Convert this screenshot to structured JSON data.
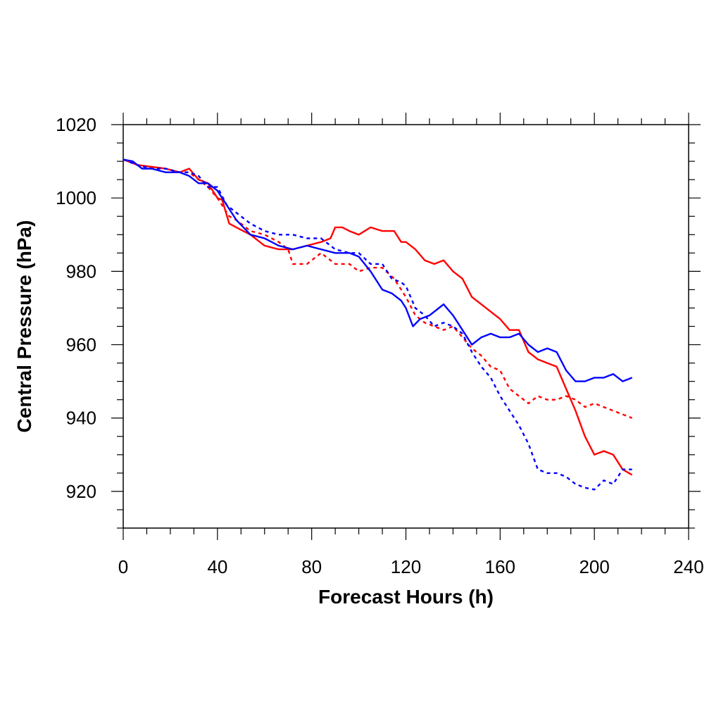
{
  "chart_data": {
    "type": "line",
    "title": "",
    "xlabel": "Forecast Hours (h)",
    "ylabel": "Central Pressure (hPa)",
    "xlim": [
      0,
      240
    ],
    "ylim": [
      910,
      1020
    ],
    "xticks": [
      0,
      40,
      80,
      120,
      160,
      200,
      240
    ],
    "yticks": [
      920,
      940,
      960,
      980,
      1000,
      1020
    ],
    "grid": false,
    "legend": "none",
    "series": [
      {
        "color": "#ff0000",
        "linestyle": "solid",
        "x": [
          0,
          6,
          12,
          18,
          24,
          28,
          32,
          36,
          40,
          42,
          45,
          48,
          54,
          60,
          66,
          72,
          78,
          84,
          88,
          90,
          93,
          96,
          100,
          105,
          110,
          115,
          118,
          120,
          124,
          128,
          132,
          136,
          140,
          144,
          148,
          152,
          156,
          160,
          164,
          168,
          172,
          176,
          180,
          184,
          188,
          192,
          196,
          200,
          204,
          208,
          212,
          216
        ],
        "y": [
          1010.5,
          1009,
          1008.5,
          1008,
          1007,
          1008,
          1005,
          1004,
          1000,
          999.5,
          993,
          992,
          990,
          987,
          986,
          986,
          987,
          988,
          989,
          992,
          992,
          991,
          990,
          992,
          991,
          991,
          988,
          988,
          986,
          983,
          982,
          983,
          980,
          978,
          973,
          971,
          969,
          967,
          964,
          964,
          958,
          956,
          955,
          954,
          948,
          942,
          935,
          930,
          931,
          930,
          926,
          924.5
        ]
      },
      {
        "color": "#ff0000",
        "linestyle": "dashed",
        "x": [
          0,
          6,
          12,
          18,
          24,
          28,
          32,
          36,
          40,
          42,
          45,
          48,
          54,
          60,
          66,
          70,
          72,
          78,
          84,
          90,
          96,
          100,
          105,
          110,
          115,
          120,
          124,
          128,
          132,
          136,
          140,
          144,
          148,
          152,
          156,
          160,
          164,
          168,
          172,
          176,
          180,
          184,
          188,
          192,
          196,
          200,
          204,
          208,
          212,
          216
        ],
        "y": [
          1010.5,
          1009,
          1008.5,
          1008,
          1007,
          1007,
          1005,
          1003,
          1000,
          998,
          995,
          994,
          991,
          990,
          988,
          986,
          982,
          982,
          985,
          982,
          982,
          980,
          981,
          981,
          978,
          973,
          968,
          966,
          965,
          964,
          965,
          962,
          959,
          957,
          954,
          953,
          948,
          946,
          944,
          946,
          945,
          945,
          946,
          945,
          943,
          944,
          943,
          942,
          941,
          940
        ]
      },
      {
        "color": "#0000ff",
        "linestyle": "solid",
        "x": [
          0,
          4,
          8,
          12,
          18,
          24,
          28,
          32,
          36,
          40,
          44,
          48,
          54,
          60,
          66,
          72,
          78,
          84,
          90,
          96,
          100,
          105,
          110,
          114,
          118,
          120,
          123,
          126,
          130,
          134,
          136,
          140,
          144,
          148,
          152,
          156,
          160,
          164,
          168,
          172,
          176,
          180,
          184,
          188,
          192,
          196,
          200,
          204,
          208,
          212,
          216
        ],
        "y": [
          1010.5,
          1010,
          1008,
          1008,
          1007,
          1007,
          1006,
          1004,
          1004,
          1002,
          998,
          994,
          990,
          989,
          987,
          986,
          987,
          986,
          985,
          985,
          984,
          980,
          975,
          974,
          972,
          970,
          965,
          967,
          968,
          970,
          971,
          968,
          964,
          960,
          962,
          963,
          962,
          962,
          963,
          960,
          958,
          959,
          958,
          953,
          950,
          950,
          951,
          951,
          952,
          950,
          951
        ]
      },
      {
        "color": "#0000ff",
        "linestyle": "dashed",
        "x": [
          0,
          6,
          12,
          18,
          24,
          28,
          32,
          36,
          40,
          44,
          48,
          54,
          60,
          66,
          72,
          78,
          84,
          90,
          96,
          100,
          105,
          110,
          114,
          118,
          120,
          124,
          128,
          132,
          136,
          140,
          144,
          148,
          152,
          156,
          160,
          164,
          168,
          172,
          176,
          180,
          184,
          188,
          192,
          196,
          200,
          204,
          208,
          212,
          216
        ],
        "y": [
          1010.5,
          1009,
          1008,
          1008,
          1007,
          1007,
          1006,
          1003,
          1003,
          998,
          996,
          993,
          991,
          990,
          990,
          989,
          989,
          986,
          985,
          985,
          982,
          982,
          978,
          977,
          976,
          970,
          968,
          965,
          966,
          965,
          963,
          958,
          954,
          951,
          946,
          942,
          938,
          933,
          926,
          925,
          925,
          924,
          922,
          921,
          920.5,
          923,
          922,
          926,
          926
        ]
      }
    ]
  }
}
